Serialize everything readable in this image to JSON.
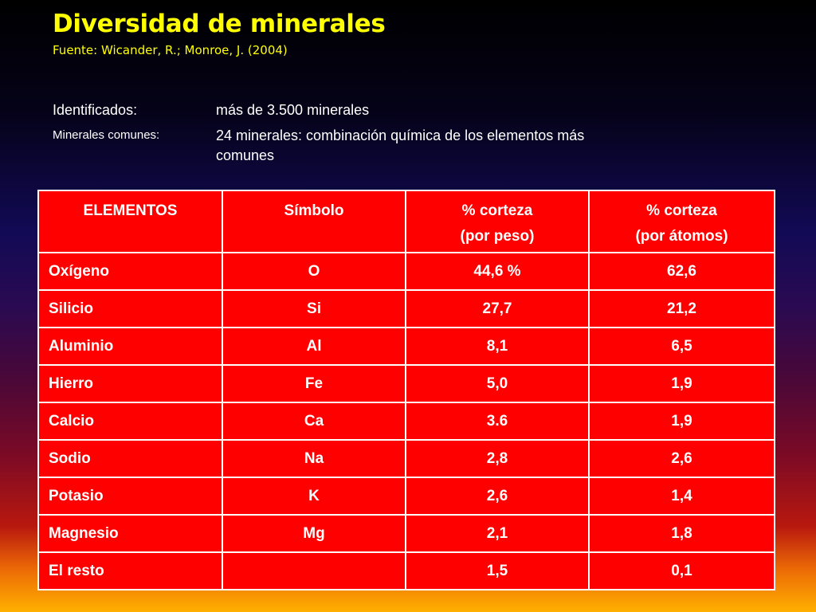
{
  "title": "Diversidad de minerales",
  "source": "Fuente: Wicander, R.; Monroe, J. (2004)",
  "info": {
    "identified_label": "Identificados:",
    "identified_value": "más de 3.500 minerales",
    "common_label": "Minerales comunes:",
    "common_value": "24 minerales: combinación química de los elementos más comunes"
  },
  "table": {
    "headers": {
      "element": "ELEMENTOS",
      "symbol": "Símbolo",
      "weight_line1": "% corteza",
      "weight_line2": "(por peso)",
      "atoms_line1": "% corteza",
      "atoms_line2": "(por átomos)"
    },
    "rows": [
      {
        "element": "Oxígeno",
        "symbol": "O",
        "weight": "44,6 %",
        "atoms": "62,6"
      },
      {
        "element": "Silicio",
        "symbol": "Si",
        "weight": "27,7",
        "atoms": "21,2"
      },
      {
        "element": "Aluminio",
        "symbol": "Al",
        "weight": "8,1",
        "atoms": "6,5"
      },
      {
        "element": "Hierro",
        "symbol": "Fe",
        "weight": "5,0",
        "atoms": "1,9"
      },
      {
        "element": "Calcio",
        "symbol": "Ca",
        "weight": "3.6",
        "atoms": "1,9"
      },
      {
        "element": "Sodio",
        "symbol": "Na",
        "weight": "2,8",
        "atoms": "2,6"
      },
      {
        "element": "Potasio",
        "symbol": "K",
        "weight": "2,6",
        "atoms": "1,4"
      },
      {
        "element": "Magnesio",
        "symbol": "Mg",
        "weight": "2,1",
        "atoms": "1,8"
      },
      {
        "element": "El resto",
        "symbol": "",
        "weight": "1,5",
        "atoms": "0,1"
      }
    ]
  }
}
